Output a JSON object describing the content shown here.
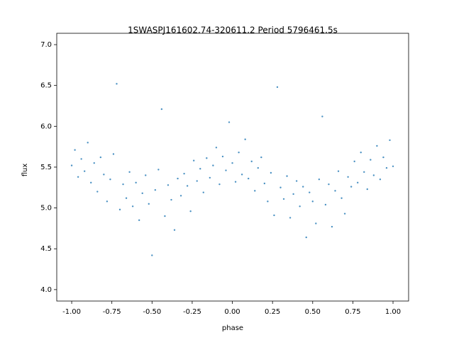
{
  "chart_data": {
    "type": "scatter",
    "title": "1SWASPJ161602.74-320611.2 Period 5796461.5s",
    "x_label": "phase",
    "y_label": "flux",
    "color": "#1f77b4",
    "x": [
      -1.0,
      -0.98,
      -0.96,
      -0.94,
      -0.92,
      -0.9,
      -0.88,
      -0.86,
      -0.84,
      -0.82,
      -0.8,
      -0.78,
      -0.76,
      -0.74,
      -0.72,
      -0.7,
      -0.68,
      -0.66,
      -0.64,
      -0.62,
      -0.6,
      -0.58,
      -0.56,
      -0.54,
      -0.52,
      -0.5,
      -0.48,
      -0.46,
      -0.44,
      -0.42,
      -0.4,
      -0.38,
      -0.36,
      -0.34,
      -0.32,
      -0.3,
      -0.28,
      -0.26,
      -0.24,
      -0.22,
      -0.2,
      -0.18,
      -0.16,
      -0.14,
      -0.12,
      -0.1,
      -0.08,
      -0.06,
      -0.04,
      -0.02,
      0.0,
      0.02,
      0.04,
      0.06,
      0.08,
      0.1,
      0.12,
      0.14,
      0.16,
      0.18,
      0.2,
      0.22,
      0.24,
      0.26,
      0.28,
      0.3,
      0.32,
      0.34,
      0.36,
      0.38,
      0.4,
      0.42,
      0.44,
      0.46,
      0.48,
      0.5,
      0.52,
      0.54,
      0.56,
      0.58,
      0.6,
      0.62,
      0.64,
      0.66,
      0.68,
      0.7,
      0.72,
      0.74,
      0.76,
      0.78,
      0.8,
      0.82,
      0.84,
      0.86,
      0.88,
      0.9,
      0.92,
      0.94,
      0.96,
      0.98,
      1.0
    ],
    "y": [
      5.52,
      5.71,
      5.38,
      5.6,
      5.45,
      5.8,
      5.31,
      5.55,
      5.2,
      5.62,
      5.41,
      5.08,
      5.35,
      5.66,
      6.52,
      4.98,
      5.29,
      5.12,
      5.44,
      5.02,
      5.31,
      4.85,
      5.18,
      5.4,
      5.05,
      4.42,
      5.22,
      5.47,
      6.21,
      4.9,
      5.28,
      5.1,
      4.73,
      5.36,
      5.15,
      5.42,
      5.27,
      4.96,
      5.58,
      5.33,
      5.48,
      5.19,
      5.61,
      5.37,
      5.52,
      5.74,
      5.29,
      5.63,
      5.46,
      6.05,
      5.55,
      5.32,
      5.68,
      5.41,
      5.84,
      5.36,
      5.57,
      5.21,
      5.49,
      5.62,
      5.3,
      5.08,
      5.43,
      4.91,
      6.48,
      5.25,
      5.11,
      5.39,
      4.88,
      5.17,
      5.33,
      5.02,
      5.26,
      4.64,
      5.19,
      5.08,
      4.81,
      5.35,
      6.12,
      5.04,
      5.29,
      4.77,
      5.21,
      5.45,
      5.12,
      4.93,
      5.38,
      5.26,
      5.57,
      5.31,
      5.68,
      5.44,
      5.23,
      5.59,
      5.4,
      5.76,
      5.35,
      5.62,
      5.49,
      5.83,
      5.51
    ],
    "xlim": [
      -1.093,
      1.097
    ],
    "ylim": [
      3.86,
      7.139
    ],
    "xticks": [
      {
        "value": -1,
        "label": "-1.00"
      },
      {
        "value": -0.75,
        "label": "-0.75"
      },
      {
        "value": -0.5,
        "label": "-0.50"
      },
      {
        "value": -0.25,
        "label": "-0.25"
      },
      {
        "value": 0,
        "label": "0.00"
      },
      {
        "value": 0.25,
        "label": "0.25"
      },
      {
        "value": 0.5,
        "label": "0.50"
      },
      {
        "value": 0.75,
        "label": "0.75"
      },
      {
        "value": 1,
        "label": "1.00"
      }
    ],
    "yticks": [
      {
        "value": 4,
        "label": "4.0"
      },
      {
        "value": 4.5,
        "label": "4.5"
      },
      {
        "value": 5,
        "label": "5.0"
      },
      {
        "value": 5.5,
        "label": "5.5"
      },
      {
        "value": 6,
        "label": "6.0"
      },
      {
        "value": 6.5,
        "label": "6.5"
      },
      {
        "value": 7,
        "label": "7.0"
      }
    ]
  }
}
